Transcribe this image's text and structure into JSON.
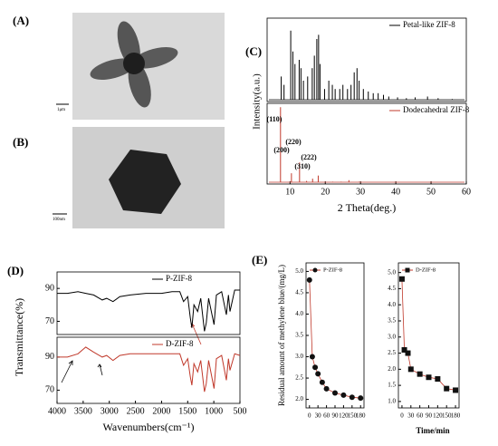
{
  "panel_labels": [
    "(A)",
    "(B)",
    "(C)",
    "(D)",
    "(E)"
  ],
  "scale_bars": [
    "1μm",
    "100nm"
  ],
  "chart_data": [
    {
      "type": "stem",
      "xlim": [
        3.5,
        60
      ],
      "ylim": [
        0,
        100
      ],
      "y_label": "Intensity(a.u.)",
      "legend": "upper right",
      "x": [
        7.5,
        8.3,
        10.2,
        10.8,
        11.4,
        12.6,
        13.1,
        13.8,
        15.0,
        16.3,
        16.9,
        17.6,
        18.1,
        18.5,
        19.8,
        21.0,
        22.0,
        22.8,
        24.1,
        25.0,
        26.3,
        27.3,
        28.2,
        29.0,
        29.6,
        30.8,
        32.2,
        33.6,
        35.0,
        36.5,
        38.0,
        40.5,
        43.0,
        45.5,
        49.0,
        52.0,
        56.0
      ],
      "series": [
        {
          "name": "Petal-like ZIF-8",
          "color": "#000000",
          "values": [
            30,
            20,
            85,
            60,
            45,
            50,
            40,
            25,
            30,
            40,
            55,
            75,
            80,
            45,
            15,
            25,
            20,
            15,
            15,
            20,
            15,
            20,
            35,
            40,
            25,
            15,
            12,
            10,
            10,
            8,
            6,
            5,
            4,
            5,
            6,
            4,
            3
          ]
        }
      ]
    },
    {
      "type": "stem",
      "xlim": [
        3.5,
        60
      ],
      "ylim": [
        0,
        105
      ],
      "x_label": "2 Theta(deg.)",
      "legend": "upper right",
      "xticks": [
        10,
        20,
        30,
        40,
        50,
        60
      ],
      "annotations": [
        "(110)",
        "(200)",
        "(220)",
        "(310)",
        "(222)"
      ],
      "x": [
        7.3,
        10.4,
        12.7,
        14.7,
        16.4,
        18.0,
        22.1,
        24.5,
        26.7,
        29.6,
        32.4,
        36.0,
        44.0
      ],
      "series": [
        {
          "name": "Dodecahedral ZIF-8",
          "color": "#c0392b",
          "values": [
            100,
            14,
            28,
            4,
            7,
            11,
            3,
            3,
            5,
            3,
            2,
            2,
            2
          ]
        }
      ]
    },
    {
      "type": "line",
      "xlim": [
        4000,
        500
      ],
      "ylim": [
        62,
        100
      ],
      "yticks": [
        70,
        90
      ],
      "y_label": "Transmittance(%)",
      "legend": "upper right",
      "x": [
        4000,
        3800,
        3600,
        3450,
        3300,
        3135,
        3050,
        2930,
        2800,
        2600,
        2300,
        2000,
        1800,
        1650,
        1580,
        1500,
        1450,
        1420,
        1380,
        1310,
        1250,
        1180,
        1145,
        1100,
        995,
        950,
        850,
        760,
        720,
        690,
        600,
        500
      ],
      "series": [
        {
          "name": "P-ZIF-8",
          "color": "#000000",
          "values": [
            87,
            87,
            88,
            87,
            86,
            83,
            84,
            82,
            85,
            86,
            87,
            87,
            88,
            88,
            82,
            85,
            72,
            66,
            80,
            76,
            84,
            64,
            69,
            84,
            68,
            86,
            88,
            74,
            86,
            76,
            89,
            89
          ]
        }
      ]
    },
    {
      "type": "line",
      "xlim": [
        4000,
        500
      ],
      "ylim": [
        62,
        102
      ],
      "yticks": [
        70,
        90
      ],
      "x_label": "Wavenumbers(cm⁻¹)",
      "legend": "upper right",
      "xticks": [
        4000,
        3500,
        3000,
        2500,
        2000,
        1500,
        1000,
        500
      ],
      "x": [
        4000,
        3800,
        3600,
        3450,
        3300,
        3135,
        3050,
        2930,
        2800,
        2600,
        2300,
        2000,
        1800,
        1650,
        1580,
        1500,
        1450,
        1420,
        1380,
        1310,
        1250,
        1180,
        1145,
        1100,
        995,
        950,
        850,
        760,
        720,
        690,
        600,
        500
      ],
      "series": [
        {
          "name": "D-ZIF-8",
          "color": "#c0392b",
          "values": [
            90,
            90,
            92,
            96,
            93,
            90,
            91,
            88,
            91,
            92,
            92,
            92,
            92,
            92,
            85,
            89,
            78,
            73,
            86,
            81,
            88,
            69,
            74,
            88,
            71,
            89,
            91,
            76,
            89,
            82,
            92,
            91
          ]
        }
      ]
    },
    {
      "type": "line",
      "xlim": [
        -12,
        192
      ],
      "ylim": [
        1.8,
        5.2
      ],
      "legend": "upper left",
      "y_label": "Residual amount of methylene blue/(mg/L)",
      "xticks": [
        0,
        30,
        60,
        90,
        120,
        150,
        180
      ],
      "yticks": [
        {
          "value": 2,
          "label": "2.0"
        },
        {
          "value": 2.5,
          "label": "2.5"
        },
        {
          "value": 3,
          "label": "3.0"
        },
        {
          "value": 3.5,
          "label": "3.5"
        },
        {
          "value": 4,
          "label": "4.0"
        },
        {
          "value": 4.5,
          "label": "4.5"
        },
        {
          "value": 5,
          "label": "5.0"
        }
      ],
      "x": [
        0,
        10,
        20,
        30,
        45,
        60,
        90,
        120,
        150,
        180
      ],
      "series": [
        {
          "name": "P-ZIF-8",
          "color": "#c0392b",
          "marker": "circle",
          "marker_color": "#111111",
          "values": [
            4.8,
            3.0,
            2.75,
            2.6,
            2.4,
            2.25,
            2.15,
            2.1,
            2.05,
            2.03
          ]
        }
      ]
    },
    {
      "type": "line",
      "xlim": [
        -12,
        192
      ],
      "ylim": [
        0.8,
        5.3
      ],
      "legend": "upper left",
      "x_label": "Time/min",
      "xticks": [
        0,
        30,
        60,
        90,
        120,
        150,
        180
      ],
      "yticks": [
        {
          "value": 1,
          "label": "1.0"
        },
        {
          "value": 1.5,
          "label": "1.5"
        },
        {
          "value": 2,
          "label": "2.0"
        },
        {
          "value": 2.5,
          "label": "2.5"
        },
        {
          "value": 3,
          "label": "3.0"
        },
        {
          "value": 3.5,
          "label": "3.5"
        },
        {
          "value": 4,
          "label": "4.0"
        },
        {
          "value": 4.5,
          "label": "4.5"
        },
        {
          "value": 5,
          "label": "5.0"
        }
      ],
      "x": [
        0,
        8,
        20,
        30,
        60,
        90,
        120,
        150,
        180
      ],
      "series": [
        {
          "name": "D-ZIF-8",
          "color": "#c0392b",
          "marker": "square",
          "marker_color": "#111111",
          "values": [
            4.8,
            2.6,
            2.5,
            2.0,
            1.85,
            1.75,
            1.7,
            1.4,
            1.35
          ]
        }
      ]
    }
  ]
}
